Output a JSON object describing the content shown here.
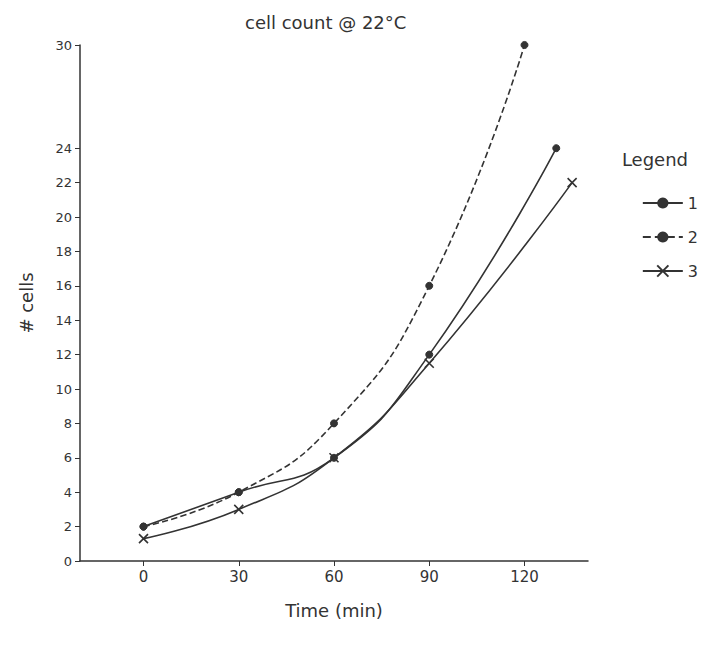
{
  "chart_data": {
    "type": "line",
    "title": "cell count @ 22°C",
    "x_label": "Time (min)",
    "y_label": "# cells",
    "xlim": [
      -20,
      140
    ],
    "xticks": [
      0,
      30,
      60,
      90,
      120
    ],
    "ylim": [
      0,
      30
    ],
    "yticks": [
      0,
      2,
      4,
      6,
      8,
      10,
      12,
      14,
      16,
      18,
      20,
      22,
      24,
      30
    ],
    "grid": false,
    "legend": "right",
    "annotations": [
      "Legend"
    ],
    "series": [
      {
        "name": "1",
        "color": "#333333",
        "marker": "circle",
        "line_style": "solid",
        "x": [
          0,
          30,
          60,
          90,
          130
        ],
        "values": [
          2,
          4,
          6,
          12,
          24
        ]
      },
      {
        "name": "2",
        "color": "#333333",
        "marker": "circle",
        "line_style": "dashed",
        "x": [
          0,
          30,
          60,
          90,
          120
        ],
        "values": [
          2,
          4,
          8,
          16,
          30
        ]
      },
      {
        "name": "3",
        "color": "#333333",
        "marker": "x",
        "line_style": "solid",
        "x": [
          0,
          30,
          60,
          90,
          135
        ],
        "values": [
          1.3,
          3,
          6,
          11.5,
          22
        ]
      }
    ]
  }
}
